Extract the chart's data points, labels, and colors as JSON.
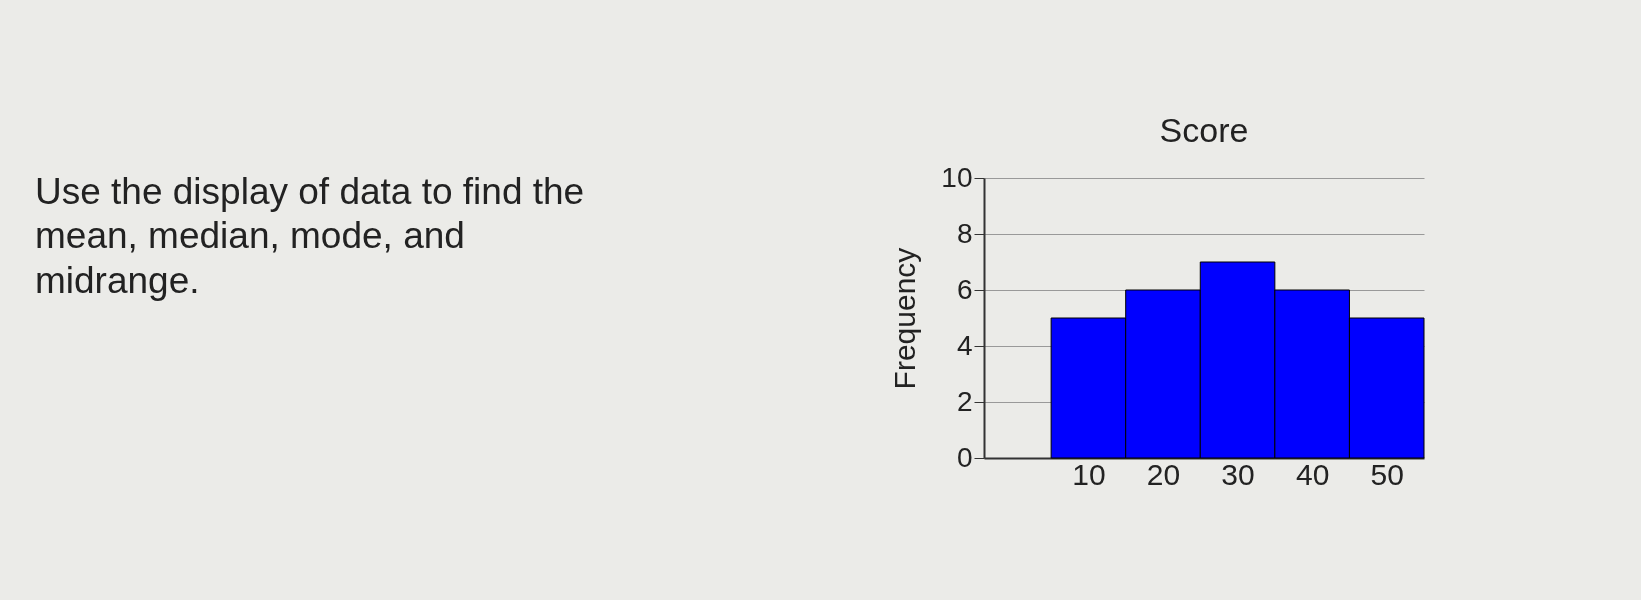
{
  "chart_data": {
    "type": "histogram",
    "title": "Score",
    "ylabel": "Frequency",
    "annotations": [
      "Use the display of data to find the mean, median, mode, and midrange."
    ],
    "bins": [
      5,
      15,
      25,
      35,
      45,
      55
    ],
    "values": [
      5,
      6,
      7,
      6,
      5
    ],
    "color": "#0000ff",
    "xlim": [
      -4,
      55
    ],
    "xticks": [
      10,
      20,
      30,
      40,
      50
    ],
    "ylim": [
      0,
      10
    ],
    "yticks": [
      0,
      2,
      4,
      6,
      8,
      10
    ],
    "grid": "y"
  }
}
